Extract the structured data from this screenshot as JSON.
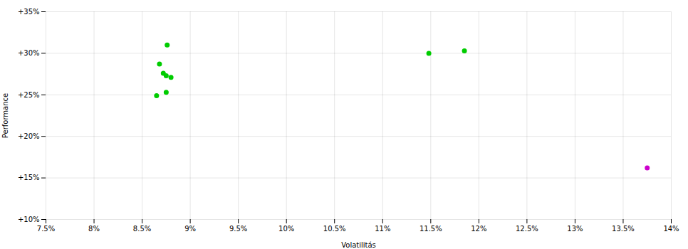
{
  "chart_data": {
    "type": "scatter",
    "xlabel": "Volatilitás",
    "ylabel": "Performance",
    "xlim": [
      0.075,
      0.14
    ],
    "ylim": [
      0.1,
      0.35
    ],
    "xticks": [
      {
        "value": 0.075,
        "label": "7.5%"
      },
      {
        "value": 0.08,
        "label": "8%"
      },
      {
        "value": 0.085,
        "label": "8.5%"
      },
      {
        "value": 0.09,
        "label": "9%"
      },
      {
        "value": 0.095,
        "label": "9.5%"
      },
      {
        "value": 0.1,
        "label": "10%"
      },
      {
        "value": 0.105,
        "label": "10.5%"
      },
      {
        "value": 0.11,
        "label": "11%"
      },
      {
        "value": 0.115,
        "label": "11.5%"
      },
      {
        "value": 0.12,
        "label": "12%"
      },
      {
        "value": 0.125,
        "label": "12.5%"
      },
      {
        "value": 0.13,
        "label": "13%"
      },
      {
        "value": 0.135,
        "label": "13.5%"
      },
      {
        "value": 0.14,
        "label": "14%"
      }
    ],
    "yticks": [
      {
        "value": 0.1,
        "label": "+10%"
      },
      {
        "value": 0.15,
        "label": "+15%"
      },
      {
        "value": 0.2,
        "label": "+20%"
      },
      {
        "value": 0.25,
        "label": "+25%"
      },
      {
        "value": 0.3,
        "label": "+30%"
      },
      {
        "value": 0.35,
        "label": "+35%"
      }
    ],
    "grid": true,
    "series": [
      {
        "color": "#00cc00",
        "x": [
          0.0876,
          0.0868,
          0.0872,
          0.0875,
          0.088,
          0.0875,
          0.0865,
          0.1148,
          0.1185
        ],
        "y": [
          0.31,
          0.287,
          0.276,
          0.273,
          0.271,
          0.253,
          0.249,
          0.3,
          0.303
        ]
      },
      {
        "color": "#cc00cc",
        "x": [
          0.1375
        ],
        "y": [
          0.162
        ]
      }
    ]
  }
}
